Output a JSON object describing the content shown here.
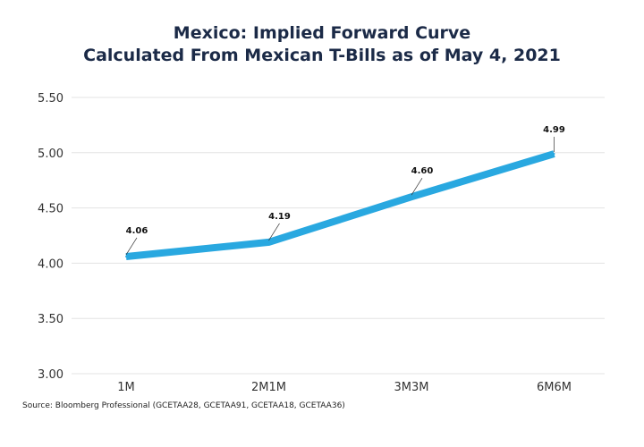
{
  "chart_data": {
    "type": "line",
    "title": "Mexico: Implied Forward Curve",
    "subtitle": "Calculated From Mexican T-Bills as of May 4, 2021",
    "categories": [
      "1M",
      "2M1M",
      "3M3M",
      "6M6M"
    ],
    "series": [
      {
        "values": [
          4.06,
          4.19,
          4.6,
          4.99
        ],
        "color": "#29a8e0"
      }
    ],
    "data_labels": [
      "4.06",
      "4.19",
      "4.60",
      "4.99"
    ],
    "yticks": [
      "3.00",
      "3.50",
      "4.00",
      "4.50",
      "5.00",
      "5.50"
    ],
    "ylim": [
      3.0,
      5.5
    ],
    "grid": true,
    "xlabel": "",
    "ylabel": ""
  },
  "source": "Source: Bloomberg Professional (GCETAA28, GCETAA91, GCETAA18, GCETAA36)"
}
